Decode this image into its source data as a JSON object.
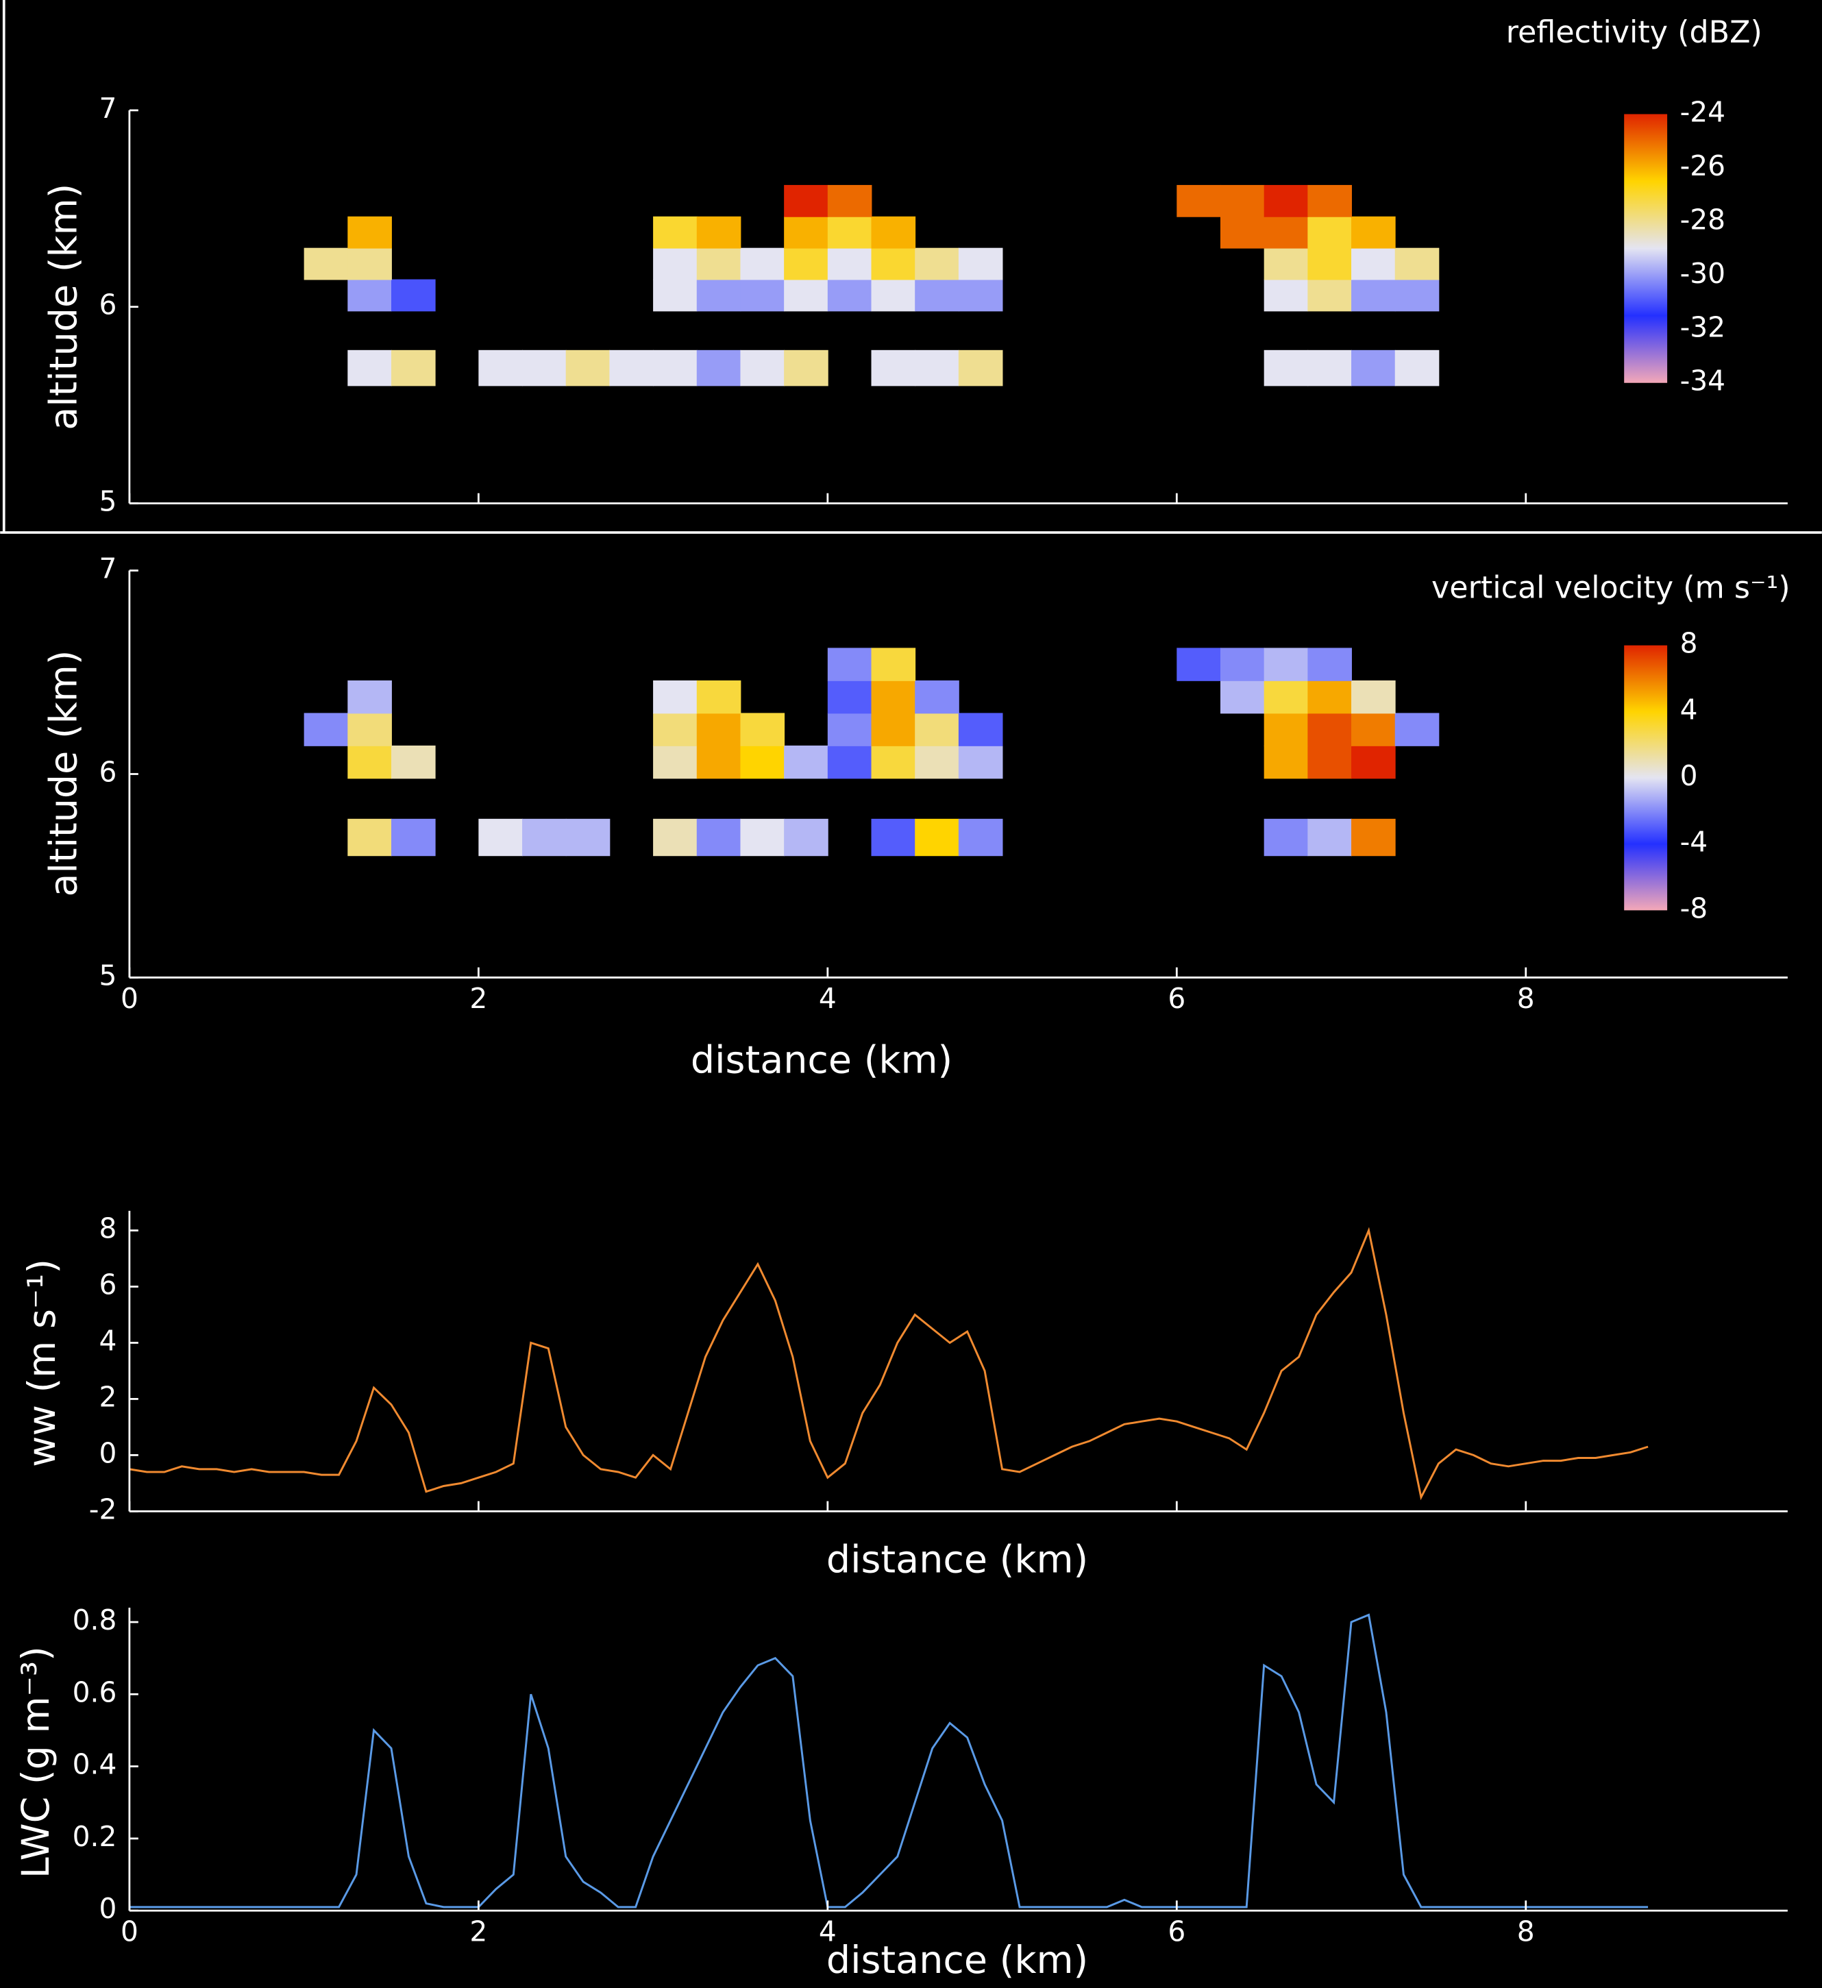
{
  "chart_data": [
    {
      "type": "heatmap",
      "ylabel": "altitude (km)",
      "colorbar_label": "reflectivity (dBZ)",
      "xlim": [
        0,
        9.5
      ],
      "xticks": [
        0,
        2,
        4,
        6,
        8
      ],
      "ylim": [
        5,
        7
      ],
      "yticks": [
        5,
        6,
        7
      ],
      "zlim": [
        -34,
        -24
      ],
      "zticks": [
        -24,
        -26,
        -28,
        -30,
        -32,
        -34
      ],
      "colors": [
        "#f4a8b8",
        "#2430ff",
        "#e4e4f2",
        "#ffd400",
        "#e02400"
      ],
      "x_edges": [
        1,
        1.25,
        1.5,
        1.75,
        2,
        2.25,
        2.5,
        2.75,
        3,
        3.25,
        3.5,
        3.75,
        4,
        4.25,
        4.5,
        4.75,
        5,
        5.25,
        5.5,
        5.75,
        6,
        6.25,
        6.5,
        6.75,
        7,
        7.25,
        7.5
      ],
      "y_edges": [
        5.6,
        5.78,
        5.98,
        6.14,
        6.3,
        6.46,
        6.62
      ],
      "z": [
        [
          null,
          -29,
          -28,
          null,
          -29,
          -29,
          -28,
          -29,
          -29,
          -30,
          -29,
          -28,
          null,
          -29,
          -29,
          -28,
          null,
          null,
          null,
          null,
          null,
          null,
          -29,
          -29,
          -30,
          -29
        ],
        [
          null,
          null,
          null,
          null,
          null,
          null,
          null,
          null,
          null,
          null,
          null,
          null,
          null,
          null,
          null,
          null,
          null,
          null,
          null,
          null,
          null,
          null,
          null,
          null,
          null,
          null
        ],
        [
          null,
          -30,
          -31,
          null,
          null,
          null,
          null,
          null,
          -29,
          -30,
          -30,
          -29,
          -30,
          -29,
          -30,
          -30,
          null,
          null,
          null,
          null,
          null,
          null,
          -29,
          -28,
          -30,
          -30
        ],
        [
          -28,
          -28,
          null,
          null,
          null,
          null,
          null,
          null,
          -29,
          -28,
          -29,
          -27,
          -29,
          -27,
          -28,
          -29,
          null,
          null,
          null,
          null,
          null,
          null,
          -28,
          -27,
          -29,
          -28
        ],
        [
          null,
          -26,
          null,
          null,
          null,
          null,
          null,
          null,
          -27,
          -26,
          null,
          -26,
          -27,
          -26,
          null,
          null,
          null,
          null,
          null,
          null,
          null,
          -25,
          -25,
          -27,
          -26,
          null
        ],
        [
          null,
          null,
          null,
          null,
          null,
          null,
          null,
          null,
          null,
          null,
          null,
          -24,
          -25,
          null,
          null,
          null,
          null,
          null,
          null,
          null,
          -25,
          -25,
          -24,
          -25,
          null,
          null
        ]
      ]
    },
    {
      "type": "heatmap",
      "ylabel": "altitude (km)",
      "xlabel": "distance (km)",
      "colorbar_label": "vertical velocity (m s⁻¹)",
      "xlim": [
        0,
        9.5
      ],
      "xticks": [
        0,
        2,
        4,
        6,
        8
      ],
      "ylim": [
        5,
        7
      ],
      "yticks": [
        5,
        6,
        7
      ],
      "zlim": [
        -8,
        8
      ],
      "zticks": [
        8,
        4,
        0,
        -4,
        -8
      ],
      "colors": [
        "#f4a8b8",
        "#2430ff",
        "#e4e4f2",
        "#ffd400",
        "#e02400"
      ],
      "x_edges": [
        1,
        1.25,
        1.5,
        1.75,
        2,
        2.25,
        2.5,
        2.75,
        3,
        3.25,
        3.5,
        3.75,
        4,
        4.25,
        4.5,
        4.75,
        5,
        5.25,
        5.5,
        5.75,
        6,
        6.25,
        6.5,
        6.75,
        7,
        7.25,
        7.5
      ],
      "y_edges": [
        5.6,
        5.78,
        5.98,
        6.14,
        6.3,
        6.46,
        6.62
      ],
      "z": [
        [
          null,
          2,
          -2,
          null,
          0,
          -1,
          -1,
          null,
          1,
          -2,
          0,
          -1,
          null,
          -3,
          4,
          -2,
          null,
          null,
          null,
          null,
          null,
          null,
          -2,
          -1,
          6,
          null
        ],
        [
          null,
          null,
          null,
          null,
          null,
          null,
          null,
          null,
          null,
          null,
          null,
          null,
          null,
          null,
          null,
          null,
          null,
          null,
          null,
          null,
          null,
          null,
          null,
          null,
          null,
          null
        ],
        [
          null,
          3,
          1,
          null,
          null,
          null,
          null,
          null,
          1,
          5,
          4,
          -1,
          -3,
          3,
          1,
          -1,
          null,
          null,
          null,
          null,
          null,
          null,
          5,
          7,
          8,
          null
        ],
        [
          -2,
          2,
          null,
          null,
          null,
          null,
          null,
          null,
          2,
          5,
          3,
          null,
          -2,
          5,
          2,
          -3,
          null,
          null,
          null,
          null,
          null,
          null,
          5,
          7,
          6,
          -2
        ],
        [
          null,
          -1,
          null,
          null,
          null,
          null,
          null,
          null,
          0,
          3,
          null,
          null,
          -3,
          5,
          -2,
          null,
          null,
          null,
          null,
          null,
          null,
          -1,
          3,
          5,
          1,
          null
        ],
        [
          null,
          null,
          null,
          null,
          null,
          null,
          null,
          null,
          null,
          null,
          null,
          null,
          -2,
          3,
          null,
          null,
          null,
          null,
          null,
          null,
          -3,
          -2,
          -1,
          -2,
          null,
          null
        ]
      ]
    },
    {
      "type": "line",
      "ylabel": "ww (m s⁻¹)",
      "xlabel": "distance (km)",
      "color": "#f08a30",
      "xlim": [
        0,
        9.5
      ],
      "xticks": [
        0,
        2,
        4,
        6,
        8
      ],
      "ylim": [
        -2,
        8.7
      ],
      "yticks": [
        -2,
        0,
        2,
        4,
        6,
        8
      ],
      "x": [
        0,
        0.1,
        0.2,
        0.3,
        0.4,
        0.5,
        0.6,
        0.7,
        0.8,
        0.9,
        1,
        1.1,
        1.2,
        1.3,
        1.4,
        1.5,
        1.6,
        1.7,
        1.8,
        1.9,
        2,
        2.1,
        2.2,
        2.3,
        2.4,
        2.5,
        2.6,
        2.7,
        2.8,
        2.9,
        3,
        3.1,
        3.2,
        3.3,
        3.4,
        3.5,
        3.6,
        3.7,
        3.8,
        3.9,
        4,
        4.1,
        4.2,
        4.3,
        4.4,
        4.5,
        4.6,
        4.7,
        4.8,
        4.9,
        5,
        5.1,
        5.2,
        5.3,
        5.4,
        5.5,
        5.6,
        5.7,
        5.8,
        5.9,
        6,
        6.1,
        6.2,
        6.3,
        6.4,
        6.5,
        6.6,
        6.7,
        6.8,
        6.9,
        7,
        7.1,
        7.2,
        7.3,
        7.4,
        7.5,
        7.6,
        7.7,
        7.8,
        7.9,
        8,
        8.1,
        8.2,
        8.3,
        8.4,
        8.5,
        8.6,
        8.7
      ],
      "values": [
        -0.5,
        -0.6,
        -0.6,
        -0.4,
        -0.5,
        -0.5,
        -0.6,
        -0.5,
        -0.6,
        -0.6,
        -0.6,
        -0.7,
        -0.7,
        0.5,
        2.4,
        1.8,
        0.8,
        -1.3,
        -1.1,
        -1.0,
        -0.8,
        -0.6,
        -0.3,
        4.0,
        3.8,
        1.0,
        0.0,
        -0.5,
        -0.6,
        -0.8,
        0.0,
        -0.5,
        1.5,
        3.5,
        4.8,
        5.8,
        6.8,
        5.5,
        3.5,
        0.5,
        -0.8,
        -0.3,
        1.5,
        2.5,
        4.0,
        5.0,
        4.5,
        4.0,
        4.4,
        3.0,
        -0.5,
        -0.6,
        -0.3,
        0.0,
        0.3,
        0.5,
        0.8,
        1.1,
        1.2,
        1.3,
        1.2,
        1.0,
        0.8,
        0.6,
        0.2,
        1.5,
        3.0,
        3.5,
        5.0,
        5.8,
        6.5,
        8.0,
        5.0,
        1.5,
        -1.5,
        -0.3,
        0.2,
        0.0,
        -0.3,
        -0.4,
        -0.3,
        -0.2,
        -0.2,
        -0.1,
        -0.1,
        0.0,
        0.1,
        0.3
      ]
    },
    {
      "type": "line",
      "ylabel": "LWC (g m⁻³)",
      "xlabel": "distance (km)",
      "color": "#5a9ae6",
      "xlim": [
        0,
        9.5
      ],
      "xticks": [
        0,
        2,
        4,
        6,
        8
      ],
      "ylim": [
        0,
        0.84
      ],
      "yticks": [
        0,
        0.2,
        0.4,
        0.6,
        0.8
      ],
      "x": [
        0,
        0.1,
        0.2,
        0.3,
        0.4,
        0.5,
        0.6,
        0.7,
        0.8,
        0.9,
        1,
        1.1,
        1.2,
        1.3,
        1.4,
        1.5,
        1.6,
        1.7,
        1.8,
        1.9,
        2,
        2.1,
        2.2,
        2.3,
        2.4,
        2.5,
        2.6,
        2.7,
        2.8,
        2.9,
        3,
        3.1,
        3.2,
        3.3,
        3.4,
        3.5,
        3.6,
        3.7,
        3.8,
        3.9,
        4,
        4.1,
        4.2,
        4.3,
        4.4,
        4.5,
        4.6,
        4.7,
        4.8,
        4.9,
        5,
        5.1,
        5.2,
        5.3,
        5.4,
        5.5,
        5.6,
        5.7,
        5.8,
        5.9,
        6,
        6.1,
        6.2,
        6.3,
        6.4,
        6.5,
        6.6,
        6.7,
        6.8,
        6.9,
        7,
        7.1,
        7.2,
        7.3,
        7.4,
        7.5,
        7.6,
        7.7,
        7.8,
        7.9,
        8,
        8.1,
        8.2,
        8.3,
        8.4,
        8.5,
        8.6,
        8.7
      ],
      "values": [
        0.01,
        0.01,
        0.01,
        0.01,
        0.01,
        0.01,
        0.01,
        0.01,
        0.01,
        0.01,
        0.01,
        0.01,
        0.01,
        0.1,
        0.5,
        0.45,
        0.15,
        0.02,
        0.01,
        0.01,
        0.01,
        0.06,
        0.1,
        0.6,
        0.45,
        0.15,
        0.08,
        0.05,
        0.01,
        0.01,
        0.15,
        0.25,
        0.35,
        0.45,
        0.55,
        0.62,
        0.68,
        0.7,
        0.65,
        0.25,
        0.01,
        0.01,
        0.05,
        0.1,
        0.15,
        0.3,
        0.45,
        0.52,
        0.48,
        0.35,
        0.25,
        0.01,
        0.01,
        0.01,
        0.01,
        0.01,
        0.01,
        0.03,
        0.01,
        0.01,
        0.01,
        0.01,
        0.01,
        0.01,
        0.01,
        0.68,
        0.65,
        0.55,
        0.35,
        0.3,
        0.8,
        0.82,
        0.55,
        0.1,
        0.01,
        0.01,
        0.01,
        0.01,
        0.01,
        0.01,
        0.01,
        0.01,
        0.01,
        0.01,
        0.01,
        0.01,
        0.01,
        0.01
      ]
    }
  ]
}
